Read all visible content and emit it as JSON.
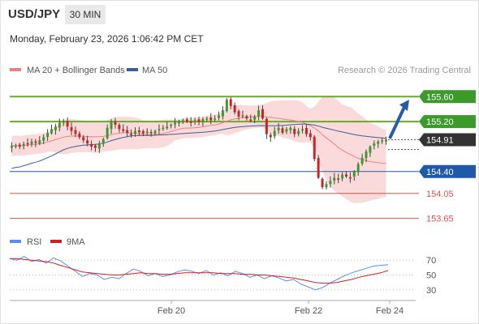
{
  "header": {
    "symbol": "USD/JPY",
    "timeframe": "30 MIN",
    "timestamp": "Monday, February 23, 2026 1:06:42 PM CET"
  },
  "colors": {
    "bullish": "#3c9a2a",
    "bearish": "#cc2222",
    "bollinger_fill": "#f9d3d3",
    "ma20": "#f08080",
    "ma50": "#3a5f9a",
    "resistance_line": "#6aaa2a",
    "pivot_line": "#1e5aa8",
    "support_line": "#e05050",
    "last_price_bg": "#333333",
    "pivot_bg": "#1e5aa8",
    "arrow": "#2a5aa8",
    "rsi": "#5b8def",
    "ma9": "#cc2222"
  },
  "chart_data": [
    {
      "type": "candlestick",
      "title": "USD/JPY",
      "legend": [
        {
          "name": "MA 20 + Bollinger Bands",
          "color": "#f08080"
        },
        {
          "name": "MA 50",
          "color": "#3a5f9a"
        }
      ],
      "credit": "Research © 2026 Trading Central",
      "ylim": [
        153.45,
        155.85
      ],
      "x_ticks": [
        "Feb 20",
        "Feb 22",
        "Feb 24"
      ],
      "levels": [
        {
          "label": "155.60",
          "value": 155.6,
          "kind": "resistance"
        },
        {
          "label": "155.20",
          "value": 155.2,
          "kind": "resistance"
        },
        {
          "label": "154.91",
          "value": 154.91,
          "kind": "last"
        },
        {
          "label": "154.40",
          "value": 154.4,
          "kind": "pivot"
        },
        {
          "label": "154.05",
          "value": 154.05,
          "kind": "support"
        },
        {
          "label": "153.65",
          "value": 153.65,
          "kind": "support"
        }
      ],
      "projection": {
        "from": 154.93,
        "to": 155.55,
        "direction": "up"
      },
      "close_path": [
        154.81,
        154.82,
        154.8,
        154.84,
        154.85,
        154.88,
        154.86,
        154.9,
        154.95,
        155.02,
        155.08,
        155.12,
        155.18,
        155.2,
        155.12,
        155.05,
        155.0,
        154.95,
        154.9,
        154.85,
        154.8,
        154.78,
        154.85,
        154.92,
        155.1,
        155.2,
        155.15,
        155.08,
        155.05,
        155.02,
        155.0,
        155.05,
        155.03,
        155.01,
        155.04,
        155.02,
        155.05,
        155.08,
        155.1,
        155.12,
        155.15,
        155.18,
        155.2,
        155.22,
        155.2,
        155.18,
        155.22,
        155.2,
        155.24,
        155.25,
        155.22,
        155.25,
        155.3,
        155.38,
        155.55,
        155.45,
        155.35,
        155.28,
        155.3,
        155.25,
        155.22,
        155.28,
        155.38,
        155.25,
        155.0,
        154.95,
        155.05,
        155.1,
        155.02,
        155.08,
        155.1,
        155.0,
        155.05,
        155.08,
        155.0,
        154.95,
        154.6,
        154.3,
        154.15,
        154.2,
        154.25,
        154.3,
        154.28,
        154.35,
        154.32,
        154.3,
        154.4,
        154.52,
        154.62,
        154.72,
        154.8,
        154.85,
        154.88,
        154.9,
        154.91
      ]
    },
    {
      "type": "line",
      "legend": [
        {
          "name": "RSI",
          "color": "#5b8def"
        },
        {
          "name": "9MA",
          "color": "#cc2222"
        }
      ],
      "ylim": [
        20,
        80
      ],
      "y_ticks": [
        70,
        50,
        30
      ],
      "series": [
        {
          "name": "RSI",
          "values": [
            72,
            70,
            75,
            68,
            71,
            66,
            73,
            69,
            62,
            55,
            48,
            52,
            50,
            44,
            47,
            45,
            52,
            58,
            55,
            49,
            52,
            48,
            50,
            54,
            57,
            55,
            52,
            56,
            50,
            53,
            49,
            55,
            52,
            47,
            50,
            45,
            49,
            46,
            42,
            44,
            38,
            34,
            30,
            33,
            39,
            44,
            49,
            53,
            56,
            59,
            62,
            63,
            64
          ]
        },
        {
          "name": "9MA",
          "values": [
            72,
            72,
            71,
            70,
            69,
            68,
            66,
            63,
            60,
            57,
            54,
            53,
            52,
            51,
            50,
            50,
            51,
            52,
            53,
            52,
            52,
            51,
            51,
            52,
            53,
            53,
            53,
            53,
            53,
            52,
            52,
            52,
            51,
            51,
            50,
            50,
            49,
            48,
            47,
            46,
            44,
            42,
            40,
            39,
            39,
            40,
            42,
            44,
            47,
            49,
            51,
            53,
            56
          ]
        }
      ]
    }
  ]
}
